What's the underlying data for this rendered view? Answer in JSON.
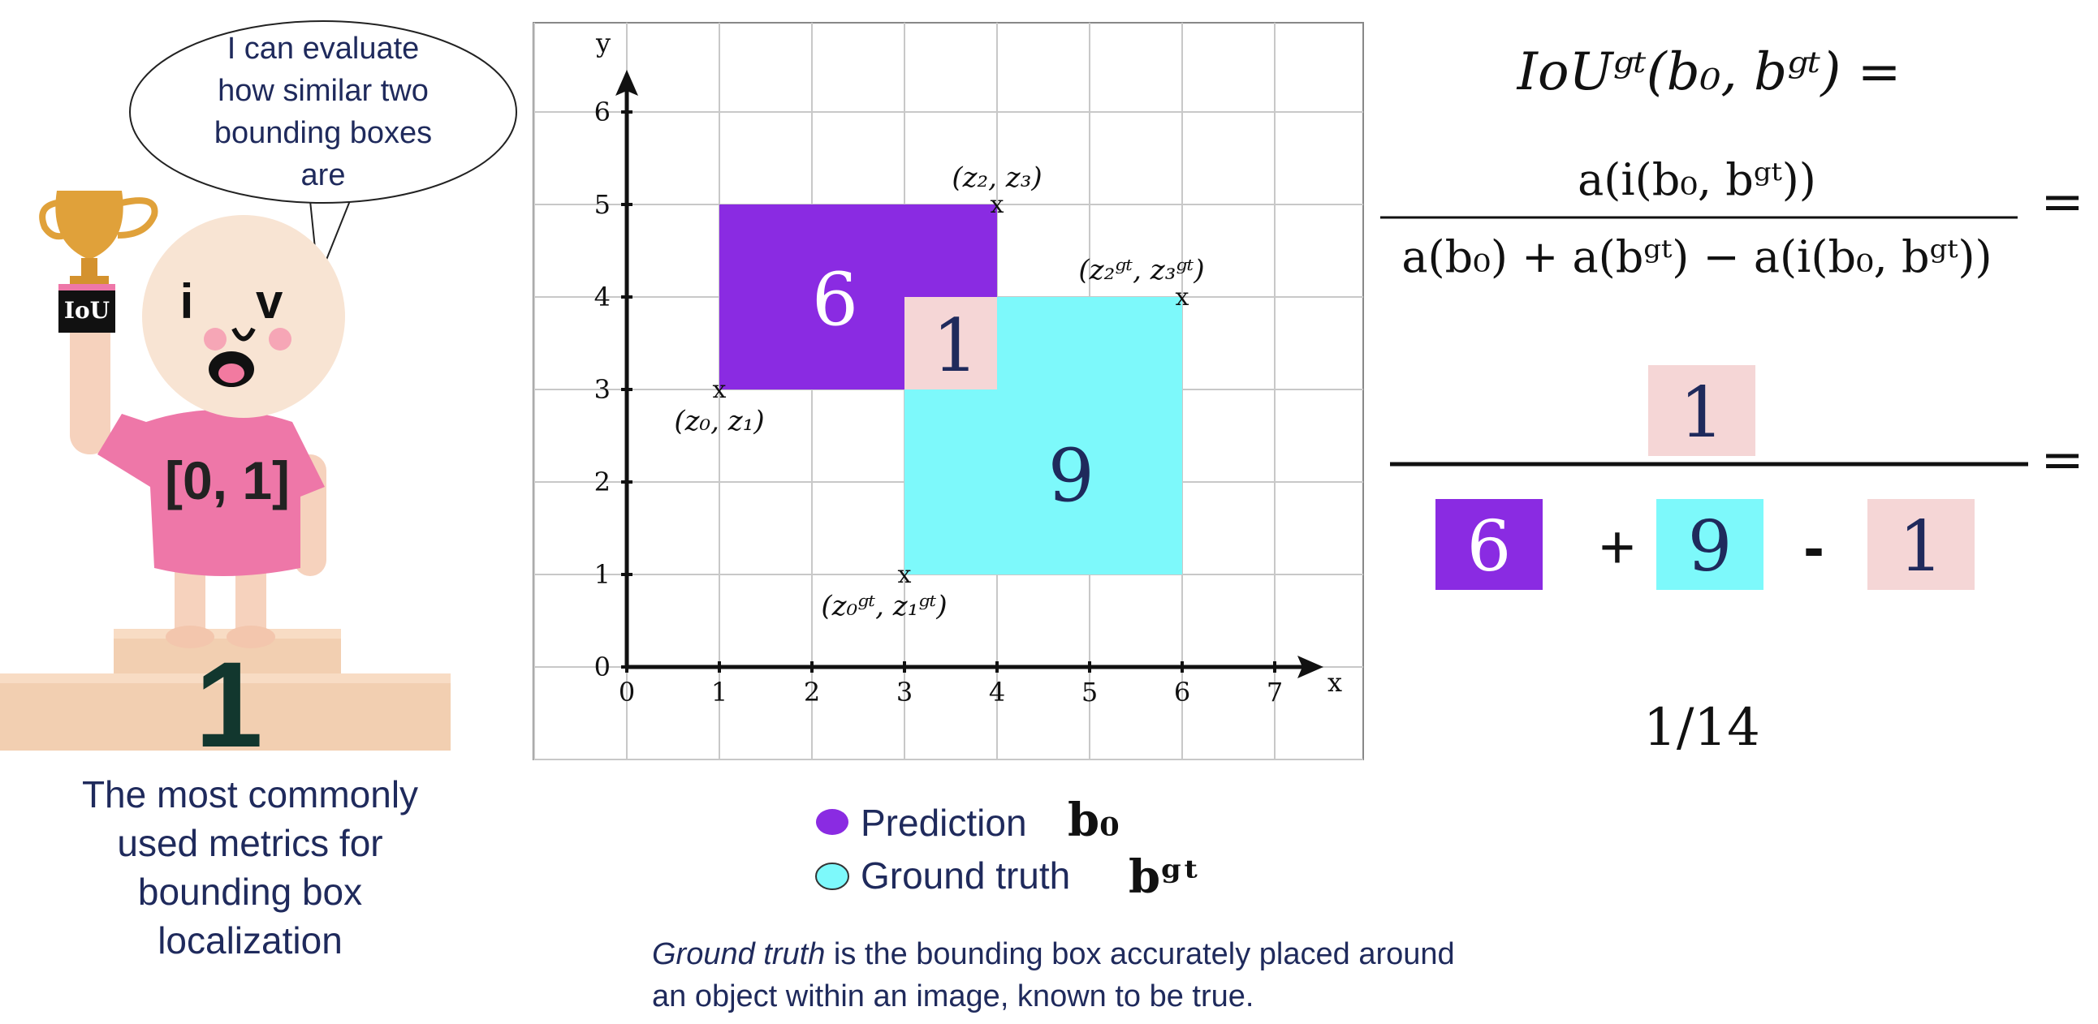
{
  "mascot": {
    "speech": [
      "I can evaluate",
      "how similar two",
      "bounding boxes",
      "are"
    ],
    "trophy_label": "IoU",
    "shirt_text": "[0, 1]",
    "face_text": "i v",
    "podium_number": "1",
    "caption": [
      "The most commonly",
      "used metrics for",
      "bounding box",
      "localization"
    ]
  },
  "chart_data": {
    "type": "diagram",
    "xlabel": "x",
    "ylabel": "y",
    "xticks": [
      "0",
      "1",
      "2",
      "3",
      "4",
      "5",
      "6",
      "7"
    ],
    "yticks": [
      "0",
      "1",
      "2",
      "3",
      "4",
      "5",
      "6"
    ],
    "xlim": [
      -1,
      8
    ],
    "ylim": [
      -1,
      7
    ],
    "grid": true,
    "prediction_box": {
      "x0": 1,
      "y0": 3,
      "x1": 4,
      "y1": 5,
      "area_label": "6",
      "color": "#8a2be2"
    },
    "ground_truth_box": {
      "x0": 3,
      "y0": 1,
      "x1": 6,
      "y1": 4,
      "area_label": "9",
      "color": "#7df9fb"
    },
    "intersection_box": {
      "x0": 3,
      "y0": 3,
      "x1": 4,
      "y1": 4,
      "area_label": "1",
      "color": "#f5d6d6"
    },
    "corner_labels": [
      {
        "x": 1,
        "y": 3,
        "marker": "x",
        "text": "(z₀, z₁)"
      },
      {
        "x": 4,
        "y": 5,
        "marker": "x",
        "text": "(z₂, z₃)"
      },
      {
        "x": 3,
        "y": 1,
        "marker": "x",
        "text": "(z₀ᵍᵗ, z₁ᵍᵗ)"
      },
      {
        "x": 6,
        "y": 4,
        "marker": "x",
        "text": "(z₂ᵍᵗ, z₃ᵍᵗ)"
      }
    ]
  },
  "legend": {
    "prediction_label": "Prediction",
    "prediction_symbol": "b₀",
    "prediction_color": "#8a2be2",
    "gt_label": "Ground truth",
    "gt_symbol": "bᵍᵗ",
    "gt_color": "#7df9fb"
  },
  "footnote": {
    "italic": "Ground truth",
    "rest_line1": " is the bounding box accurately placed around",
    "line2": "an object within an image, known to be true."
  },
  "formula": {
    "line1": "IoUᵍᵗ(b₀, bᵍᵗ) =",
    "numerator": "a(i(b₀, bᵍᵗ))",
    "denominator": "a(b₀) + a(bᵍᵗ) − a(i(b₀, bᵍᵗ))",
    "equals": "=",
    "num_value": "1",
    "den_a": "6",
    "plus": "+",
    "den_b": "9",
    "minus": "-",
    "den_c": "1",
    "result": "1/14"
  },
  "colors": {
    "text_navy": "#1f2a5c",
    "prediction": "#8a2be2",
    "ground_truth": "#7df9fb",
    "intersection": "#f5d6d6"
  }
}
